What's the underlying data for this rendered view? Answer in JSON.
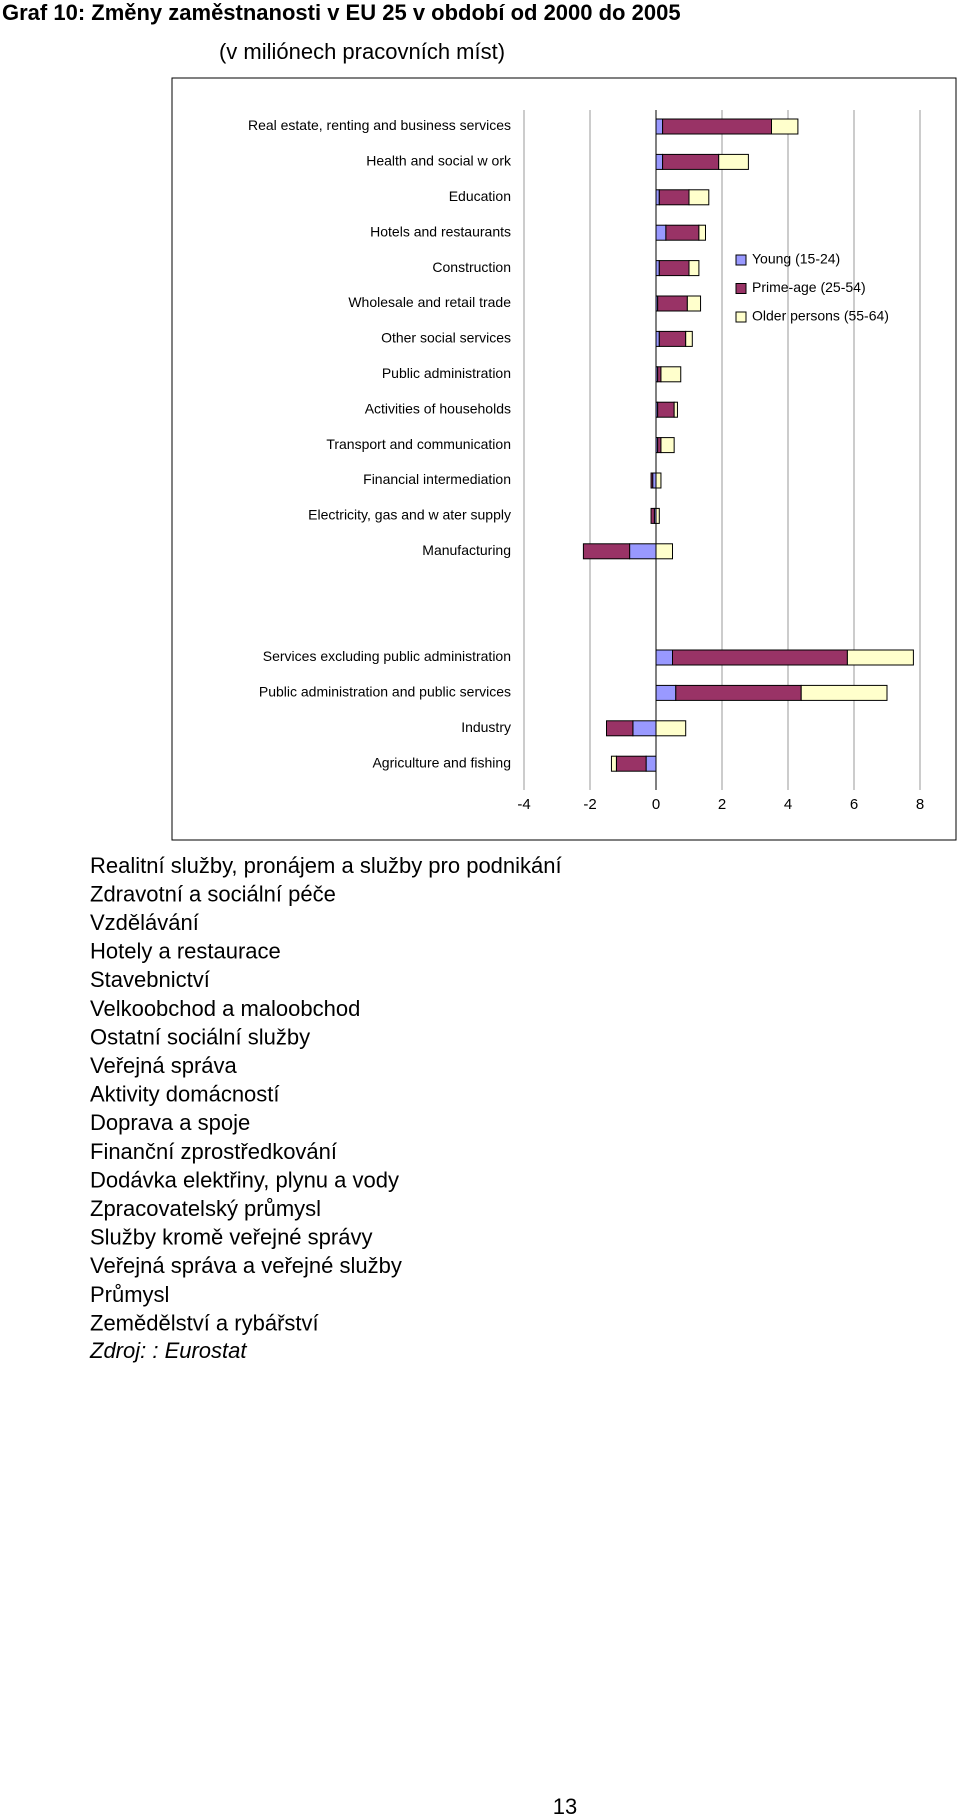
{
  "header": {
    "title": "Graf 10: Změny zaměstnanosti v EU 25 v období od 2000 do 2005",
    "subtitle": "(v miliónech pracovních míst)"
  },
  "chart_data": {
    "type": "stacked-barh",
    "categories": [
      "Real estate, renting and business services",
      "Health and social w ork",
      "Education",
      "Hotels and restaurants",
      "Construction",
      "Wholesale and retail trade",
      "Other social services",
      "Public administration",
      "Activities of households",
      "Transport and communication",
      "Financial intermediation",
      "Electricity, gas and w ater supply",
      "Manufacturing",
      null,
      null,
      "Services excluding public administration",
      "Public administration and public services",
      "Industry",
      "Agriculture and fishing"
    ],
    "series": [
      {
        "name": "Young (15-24)",
        "color": "#9999ff",
        "values": [
          0.2,
          0.2,
          0.1,
          0.3,
          0.1,
          0.05,
          0.1,
          0.05,
          0.05,
          0.05,
          -0.1,
          -0.05,
          -0.8,
          null,
          null,
          0.5,
          0.6,
          -0.7,
          -0.3
        ]
      },
      {
        "name": "Prime-age (25-54)",
        "color": "#993366",
        "values": [
          3.3,
          1.7,
          0.9,
          1.0,
          0.9,
          0.9,
          0.8,
          0.1,
          0.5,
          0.1,
          -0.05,
          -0.1,
          -1.4,
          null,
          null,
          5.3,
          3.8,
          -0.8,
          -0.9
        ]
      },
      {
        "name": "Older persons (55-64)",
        "color": "#ffffcc",
        "values": [
          0.8,
          0.9,
          0.6,
          0.2,
          0.3,
          0.4,
          0.2,
          0.6,
          0.1,
          0.4,
          0.15,
          0.1,
          0.5,
          null,
          null,
          2.0,
          2.6,
          0.9,
          -0.15
        ]
      }
    ],
    "xlim": [
      -4,
      8
    ],
    "xticks": [
      -4,
      -2,
      0,
      2,
      4,
      6,
      8
    ],
    "grid": true,
    "legend": "right"
  },
  "translations": [
    "Realitní služby, pronájem a služby pro podnikání",
    "Zdravotní a sociální péče",
    "Vzdělávání",
    "Hotely a restaurace",
    "Stavebnictví",
    "Velkoobchod a maloobchod",
    "Ostatní sociální služby",
    "Veřejná správa",
    "Aktivity domácností",
    "Doprava a spoje",
    "Finanční zprostředkování",
    "Dodávka elektřiny, plynu a vody",
    "Zpracovatelský průmysl",
    "Služby kromě veřejné správy",
    "Veřejná správa a veřejné služby",
    "Průmysl",
    "Zemědělství a rybářství"
  ],
  "source": "Zdroj: : Eurostat",
  "page_number": "13"
}
